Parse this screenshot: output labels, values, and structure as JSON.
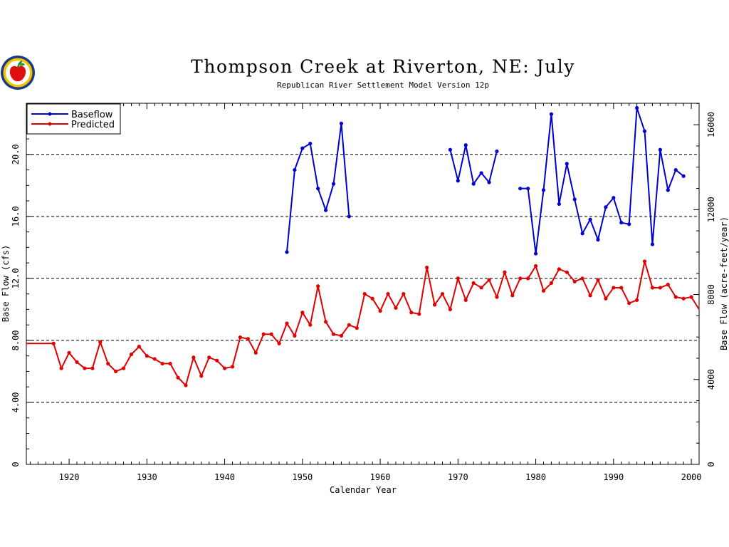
{
  "logo": {
    "icon": "apple-seal-icon"
  },
  "chart_data": {
    "type": "line",
    "title": "Thompson Creek at Riverton, NE: July",
    "subtitle": "Republican River Settlement Model Version 12p",
    "xlabel": "Calendar Year",
    "ylabel": "Base Flow (cfs)",
    "y2label": "Base Flow (acre-feet/year)",
    "xlim": [
      1914.5,
      2001
    ],
    "ylim": [
      0,
      23.3
    ],
    "y2lim": [
      0,
      17010
    ],
    "x_ticks": [
      1920,
      1930,
      1940,
      1950,
      1960,
      1970,
      1980,
      1990,
      2000
    ],
    "x_tick_labels": [
      "1920",
      "1930",
      "1940",
      "1950",
      "1960",
      "1970",
      "1980",
      "1990",
      "2000"
    ],
    "y_ticks": [
      0,
      4,
      8,
      12,
      16,
      20
    ],
    "y_tick_labels": [
      "0",
      "4.00",
      "8.00",
      "12.0",
      "16.0",
      "20.0"
    ],
    "y2_ticks": [
      0,
      4000,
      8000,
      12000,
      16000
    ],
    "y2_tick_labels": [
      "0",
      "4000",
      "8000",
      "12000",
      "16000"
    ],
    "gridlines_y": [
      4,
      8,
      12,
      16,
      20
    ],
    "legend_position": "top-left",
    "series": [
      {
        "name": "Baseflow",
        "color": "#0000d0",
        "segments": [
          {
            "x": [
              1948,
              1949,
              1950,
              1951,
              1952,
              1953,
              1954,
              1955,
              1956
            ],
            "y": [
              13.7,
              19.0,
              20.4,
              20.7,
              17.8,
              16.4,
              18.1,
              22.0,
              16.0
            ]
          },
          {
            "x": [
              1969,
              1970,
              1971,
              1972,
              1973,
              1974,
              1975
            ],
            "y": [
              20.3,
              18.3,
              20.6,
              18.1,
              18.8,
              18.2,
              20.2
            ]
          },
          {
            "x": [
              1978,
              1979,
              1980,
              1981,
              1982,
              1983,
              1984,
              1985,
              1986,
              1987,
              1988,
              1989,
              1990,
              1991,
              1992,
              1993,
              1994,
              1995,
              1996,
              1997,
              1998,
              1999
            ],
            "y": [
              17.8,
              17.8,
              13.6,
              17.7,
              22.6,
              16.8,
              19.4,
              17.1,
              14.9,
              15.8,
              14.5,
              16.6,
              17.2,
              15.6,
              15.5,
              23.0,
              21.5,
              14.2,
              20.3,
              17.7,
              19.0,
              18.6
            ]
          }
        ]
      },
      {
        "name": "Predicted",
        "color": "#e00000",
        "segments": [
          {
            "x": [
              1918,
              1919,
              1920,
              1921,
              1922,
              1923,
              1924,
              1925,
              1926,
              1927,
              1928,
              1929,
              1930,
              1931,
              1932,
              1933,
              1934,
              1935,
              1936,
              1937,
              1938,
              1939,
              1940,
              1941,
              1942,
              1943,
              1944,
              1945,
              1946,
              1947,
              1948,
              1949,
              1950,
              1951,
              1952,
              1953,
              1954,
              1955,
              1956,
              1957,
              1958,
              1959,
              1960,
              1961,
              1962,
              1963,
              1964,
              1965,
              1966,
              1967,
              1968,
              1969,
              1970,
              1971,
              1972,
              1973,
              1974,
              1975,
              1976,
              1977,
              1978,
              1979,
              1980,
              1981,
              1982,
              1983,
              1984,
              1985,
              1986,
              1987,
              1988,
              1989,
              1990,
              1991,
              1992,
              1993,
              1994,
              1995,
              1996,
              1997,
              1998,
              1999,
              2000
            ],
            "y": [
              7.8,
              6.2,
              7.2,
              6.6,
              6.2,
              6.2,
              7.9,
              6.5,
              6.0,
              6.2,
              7.1,
              7.6,
              7.0,
              6.8,
              6.5,
              6.5,
              5.6,
              5.1,
              6.9,
              5.7,
              6.9,
              6.7,
              6.2,
              6.3,
              8.2,
              8.1,
              7.2,
              8.4,
              8.4,
              7.8,
              9.1,
              8.3,
              9.8,
              9.0,
              11.5,
              9.2,
              8.4,
              8.3,
              9.0,
              8.8,
              11.0,
              10.7,
              9.9,
              11.0,
              10.1,
              11.0,
              9.8,
              9.7,
              12.7,
              10.3,
              11.0,
              10.0,
              12.0,
              10.6,
              11.7,
              11.4,
              11.9,
              10.8,
              12.4,
              10.9,
              12.0,
              12.0,
              12.8,
              11.2,
              11.7,
              12.6,
              12.4,
              11.8,
              12.0,
              10.9,
              11.9,
              10.7,
              11.4,
              11.4,
              10.4,
              10.6,
              13.1,
              11.4,
              11.4,
              11.6,
              10.8,
              10.7,
              10.8
            ]
          }
        ]
      }
    ],
    "predicted_start": {
      "x": [
        1914.5,
        1918
      ],
      "y": [
        7.8,
        7.8
      ]
    },
    "predicted_end": {
      "x": [
        2000,
        2001
      ],
      "y": [
        10.8,
        10.0
      ]
    }
  }
}
